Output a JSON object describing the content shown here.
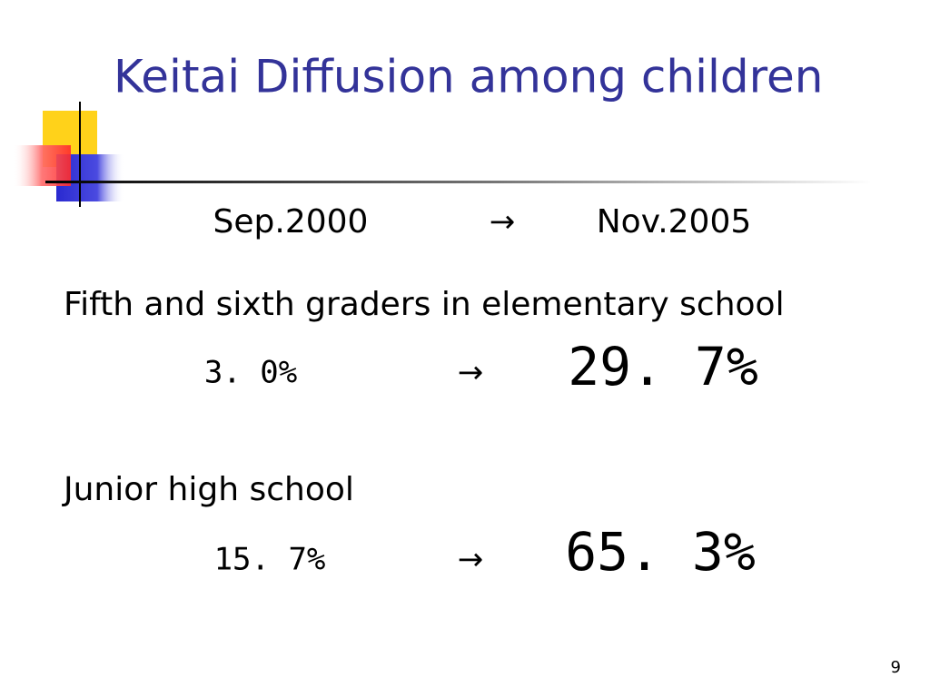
{
  "title": "Keitai Diffusion among children",
  "period": {
    "from": "Sep.2000",
    "arrow": "→",
    "to": "Nov.2005"
  },
  "rows": [
    {
      "label": "Fifth and sixth graders in elementary school",
      "from": "3. 0%",
      "arrow": "→",
      "to": "29. 7%"
    },
    {
      "label": "Junior high school",
      "from": "15. 7%",
      "arrow": "→",
      "to": "65. 3%"
    }
  ],
  "page_number": "9"
}
